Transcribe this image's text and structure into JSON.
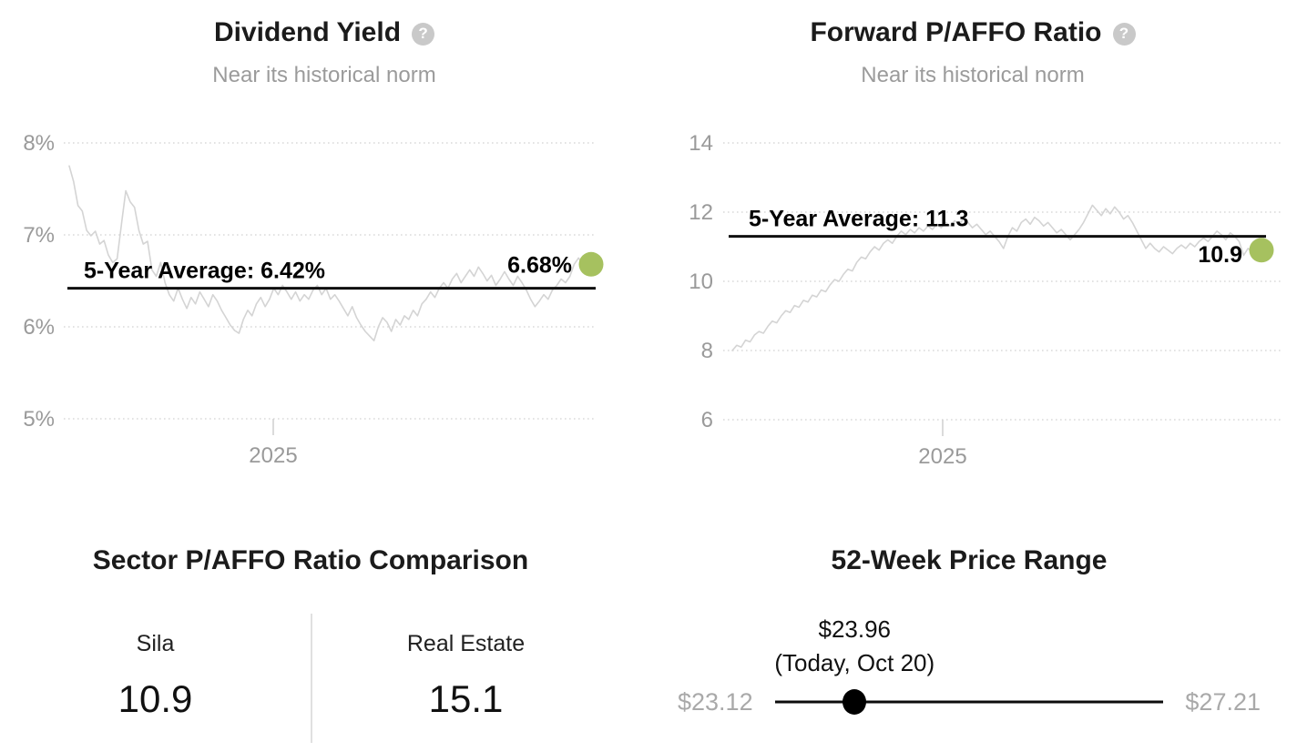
{
  "ui": {
    "help_glyph": "?"
  },
  "colors": {
    "accent_green": "#a6c15f",
    "series": "#d4d4d4",
    "grid": "#dadada",
    "average_line": "#0f0f0f",
    "muted_text": "#9a9a9a"
  },
  "chart_data": [
    {
      "type": "line",
      "title": "Dividend Yield",
      "subtitle": "Near its historical norm",
      "unit": "%",
      "y_ticks": [
        "8%",
        "7%",
        "6%",
        "5%"
      ],
      "y_tick_values": [
        8,
        7,
        6,
        5
      ],
      "ylim": [
        5,
        8
      ],
      "x_tick_labels": [
        "2025"
      ],
      "average": 6.42,
      "average_label": "5-Year Average: 6.42%",
      "latest": 6.68,
      "latest_label": "6.68%",
      "legend": "off",
      "grid": "dotted-horizontal",
      "series": [
        7.75,
        7.58,
        7.32,
        7.26,
        7.05,
        6.99,
        7.04,
        6.9,
        6.94,
        6.78,
        6.7,
        6.74,
        7.12,
        7.48,
        7.36,
        7.3,
        7.05,
        6.9,
        6.93,
        6.62,
        6.55,
        6.7,
        6.48,
        6.35,
        6.28,
        6.42,
        6.3,
        6.2,
        6.32,
        6.25,
        6.38,
        6.3,
        6.22,
        6.35,
        6.28,
        6.18,
        6.1,
        6.02,
        5.96,
        5.93,
        6.08,
        6.18,
        6.12,
        6.25,
        6.32,
        6.22,
        6.3,
        6.42,
        6.35,
        6.45,
        6.38,
        6.3,
        6.38,
        6.28,
        6.35,
        6.3,
        6.4,
        6.45,
        6.35,
        6.42,
        6.3,
        6.35,
        6.28,
        6.2,
        6.12,
        6.22,
        6.1,
        6.02,
        5.95,
        5.9,
        5.85,
        6.0,
        6.1,
        6.05,
        5.95,
        6.08,
        6.02,
        6.12,
        6.08,
        6.18,
        6.12,
        6.25,
        6.3,
        6.38,
        6.32,
        6.42,
        6.48,
        6.42,
        6.52,
        6.58,
        6.48,
        6.55,
        6.62,
        6.55,
        6.65,
        6.58,
        6.5,
        6.56,
        6.45,
        6.52,
        6.6,
        6.52,
        6.45,
        6.55,
        6.48,
        6.4,
        6.3,
        6.22,
        6.28,
        6.35,
        6.3,
        6.4,
        6.45,
        6.52,
        6.48,
        6.55,
        6.68,
        6.75,
        6.68
      ]
    },
    {
      "type": "line",
      "title": "Forward P/AFFO Ratio",
      "subtitle": "Near its historical norm",
      "unit": "x",
      "y_ticks": [
        "14",
        "12",
        "10",
        "8",
        "6"
      ],
      "y_tick_values": [
        14,
        12,
        10,
        8,
        6
      ],
      "ylim": [
        6,
        14
      ],
      "x_tick_labels": [
        "2025"
      ],
      "average": 11.3,
      "average_label": "5-Year Average: 11.3",
      "latest": 10.9,
      "latest_label": "10.9",
      "legend": "off",
      "grid": "dotted-horizontal",
      "series": [
        8.0,
        8.15,
        8.1,
        8.3,
        8.25,
        8.45,
        8.55,
        8.5,
        8.7,
        8.85,
        8.8,
        9.0,
        9.15,
        9.1,
        9.3,
        9.25,
        9.45,
        9.4,
        9.6,
        9.55,
        9.75,
        9.7,
        9.9,
        10.05,
        10.0,
        10.2,
        10.35,
        10.3,
        10.55,
        10.7,
        10.65,
        10.85,
        11.0,
        10.9,
        11.1,
        11.2,
        11.1,
        11.3,
        11.45,
        11.35,
        11.5,
        11.4,
        11.55,
        11.45,
        11.6,
        11.5,
        11.65,
        11.55,
        11.7,
        11.6,
        11.75,
        11.65,
        11.8,
        11.7,
        11.55,
        11.65,
        11.5,
        11.35,
        11.45,
        11.3,
        11.15,
        10.95,
        11.3,
        11.55,
        11.45,
        11.7,
        11.8,
        11.65,
        11.85,
        11.75,
        11.6,
        11.7,
        11.55,
        11.4,
        11.5,
        11.35,
        11.2,
        11.35,
        11.5,
        11.7,
        11.95,
        12.2,
        12.05,
        11.9,
        12.1,
        11.95,
        12.15,
        12.0,
        11.8,
        11.9,
        11.7,
        11.45,
        11.2,
        10.95,
        11.1,
        10.95,
        10.85,
        11.0,
        10.9,
        10.8,
        10.95,
        11.05,
        10.95,
        11.1,
        11.0,
        11.15,
        11.25,
        11.15,
        11.3,
        11.45,
        11.35,
        11.2,
        11.4,
        11.3,
        11.15,
        10.75,
        10.95,
        10.85,
        10.9
      ]
    },
    {
      "type": "table",
      "title": "Sector P/AFFO Ratio Comparison",
      "columns": [
        "Sila",
        "Real Estate"
      ],
      "values": [
        "10.9",
        "15.1"
      ]
    },
    {
      "type": "range",
      "title": "52-Week Price Range",
      "low": 23.12,
      "high": 27.21,
      "current": 23.96,
      "low_display": "$23.12",
      "high_display": "$27.21",
      "current_display": "$23.96",
      "current_note": "(Today, Oct 20)"
    }
  ]
}
